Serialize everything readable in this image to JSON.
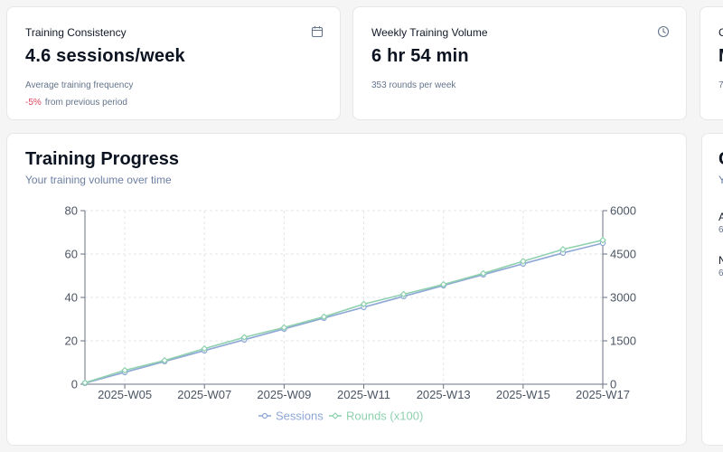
{
  "stats": [
    {
      "title": "Training Consistency",
      "icon": "calendar-icon",
      "value": "4.6 sessions/week",
      "subtitle": "Average training frequency",
      "change_value": "-5%",
      "change_text": "from previous period"
    },
    {
      "title": "Weekly Training Volume",
      "icon": "clock-icon",
      "value": "6 hr 54 min",
      "subtitle": "353 rounds per week"
    },
    {
      "title": "C",
      "value": "M",
      "subtitle": "7"
    }
  ],
  "progress": {
    "title": "Training Progress",
    "subtitle": "Your training volume over time",
    "legend": {
      "sessions": "Sessions",
      "rounds": "Rounds (x100)"
    }
  },
  "right_panel": {
    "title": "C",
    "subtitle": "Y",
    "items": [
      {
        "label": "A",
        "sub": "6"
      },
      {
        "label": "N",
        "sub": "6"
      }
    ]
  },
  "colors": {
    "sessions": "#8ea7d6",
    "rounds": "#8fd1ae",
    "negative": "#e0465f"
  },
  "chart_data": {
    "type": "line",
    "x": [
      "2025-W04",
      "2025-W05",
      "2025-W06",
      "2025-W07",
      "2025-W08",
      "2025-W09",
      "2025-W10",
      "2025-W11",
      "2025-W12",
      "2025-W13",
      "2025-W14",
      "2025-W15",
      "2025-W16",
      "2025-W17"
    ],
    "x_ticks": [
      "2025-W05",
      "2025-W07",
      "2025-W09",
      "2025-W11",
      "2025-W13",
      "2025-W15",
      "2025-W17"
    ],
    "series": [
      {
        "name": "Sessions",
        "axis": "left",
        "values": [
          0.5,
          5.5,
          10.5,
          15.5,
          20.5,
          25.5,
          30.5,
          35.5,
          40.5,
          45.5,
          50.5,
          55.5,
          60.5,
          65
        ]
      },
      {
        "name": "Rounds (x100)",
        "axis": "right",
        "values": [
          50,
          480,
          820,
          1230,
          1620,
          1960,
          2330,
          2770,
          3110,
          3450,
          3830,
          4250,
          4660,
          4980
        ]
      }
    ],
    "ylim_left": [
      0,
      80
    ],
    "yticks_left": [
      0,
      20,
      40,
      60,
      80
    ],
    "ylim_right": [
      0,
      6000
    ],
    "yticks_right": [
      0,
      1500,
      3000,
      4500,
      6000
    ],
    "grid": true,
    "legend": "bottom"
  }
}
